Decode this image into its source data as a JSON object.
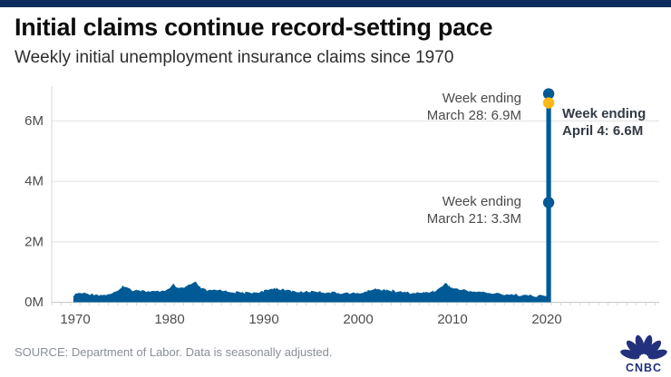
{
  "brand": {
    "bar_color": "#0d2b5c",
    "logo_text": "CNBC",
    "logo_color": "#23317c"
  },
  "header": {
    "title": "Initial claims continue record-setting pace",
    "subtitle": "Weekly initial unemployment insurance claims since 1970"
  },
  "annotations": {
    "march28": {
      "line1": "Week ending",
      "line2": "March 28: 6.9M"
    },
    "april4": {
      "line1": "Week ending",
      "line2": "April 4: 6.6M"
    },
    "march21": {
      "line1": "Week ending",
      "line2": "March 21: 3.3M"
    }
  },
  "footer": {
    "source": "SOURCE: Department of Labor. Data is seasonally adjusted."
  },
  "chart_data": {
    "type": "area",
    "title": "Weekly initial unemployment insurance claims since 1970",
    "unit": "millions of claims",
    "ylim": [
      0,
      7.2
    ],
    "grid": true,
    "colors": {
      "area": "#005a96",
      "spike": "#005a96",
      "dot_blue": "#005a96",
      "dot_gold": "#fdb813",
      "grid": "#e2e2e2",
      "axis": "#c9c9c9",
      "tick": "#d9d9d9",
      "label": "#4d4d4d"
    },
    "y_ticks": [
      {
        "label": "0M",
        "value": 0
      },
      {
        "label": "2M",
        "value": 2
      },
      {
        "label": "4M",
        "value": 4
      },
      {
        "label": "6M",
        "value": 6
      }
    ],
    "x_ticks": [
      {
        "label": "1970",
        "year": 1970
      },
      {
        "label": "1980",
        "year": 1980
      },
      {
        "label": "1990",
        "year": 1990
      },
      {
        "label": "2000",
        "year": 2000
      },
      {
        "label": "2010",
        "year": 2010
      },
      {
        "label": "2020",
        "year": 2020
      }
    ],
    "series": {
      "name": "Weekly initial claims (millions, seasonally adjusted, approx.)",
      "points": [
        [
          1969.8,
          0.22
        ],
        [
          1970.3,
          0.3
        ],
        [
          1971,
          0.3
        ],
        [
          1971.6,
          0.27
        ],
        [
          1972,
          0.26
        ],
        [
          1973,
          0.24
        ],
        [
          1974,
          0.3
        ],
        [
          1974.8,
          0.42
        ],
        [
          1975.1,
          0.56
        ],
        [
          1975.5,
          0.48
        ],
        [
          1976,
          0.4
        ],
        [
          1976.5,
          0.42
        ],
        [
          1977,
          0.39
        ],
        [
          1977.5,
          0.36
        ],
        [
          1978,
          0.34
        ],
        [
          1979,
          0.36
        ],
        [
          1980,
          0.44
        ],
        [
          1980.4,
          0.59
        ],
        [
          1981,
          0.44
        ],
        [
          1981.6,
          0.48
        ],
        [
          1982,
          0.57
        ],
        [
          1982.8,
          0.65
        ],
        [
          1983.3,
          0.47
        ],
        [
          1984,
          0.38
        ],
        [
          1985,
          0.39
        ],
        [
          1985.5,
          0.41
        ],
        [
          1986,
          0.37
        ],
        [
          1987,
          0.33
        ],
        [
          1988,
          0.31
        ],
        [
          1989,
          0.33
        ],
        [
          1990,
          0.36
        ],
        [
          1990.9,
          0.45
        ],
        [
          1991.3,
          0.47
        ],
        [
          1992,
          0.42
        ],
        [
          1993,
          0.37
        ],
        [
          1994,
          0.34
        ],
        [
          1995,
          0.36
        ],
        [
          1995.5,
          0.37
        ],
        [
          1996,
          0.35
        ],
        [
          1997,
          0.32
        ],
        [
          1998,
          0.31
        ],
        [
          1999,
          0.3
        ],
        [
          2000,
          0.29
        ],
        [
          2001,
          0.37
        ],
        [
          2001.8,
          0.47
        ],
        [
          2002,
          0.42
        ],
        [
          2003,
          0.42
        ],
        [
          2003.6,
          0.38
        ],
        [
          2004,
          0.35
        ],
        [
          2005,
          0.33
        ],
        [
          2006,
          0.3
        ],
        [
          2007,
          0.32
        ],
        [
          2008,
          0.37
        ],
        [
          2008.7,
          0.47
        ],
        [
          2009.2,
          0.65
        ],
        [
          2009.6,
          0.55
        ],
        [
          2010,
          0.47
        ],
        [
          2011,
          0.41
        ],
        [
          2012,
          0.37
        ],
        [
          2013,
          0.34
        ],
        [
          2014,
          0.3
        ],
        [
          2015,
          0.28
        ],
        [
          2016,
          0.26
        ],
        [
          2017,
          0.24
        ],
        [
          2018,
          0.22
        ],
        [
          2019,
          0.21
        ],
        [
          2020.1,
          0.21
        ]
      ]
    },
    "spike": {
      "year": 2020.2,
      "points": [
        {
          "label": "Week ending March 21",
          "value": 3.3,
          "dot": "blue"
        },
        {
          "label": "Week ending March 28",
          "value": 6.9,
          "dot": "blue"
        },
        {
          "label": "Week ending April 4",
          "value": 6.6,
          "dot": "gold"
        }
      ]
    }
  }
}
